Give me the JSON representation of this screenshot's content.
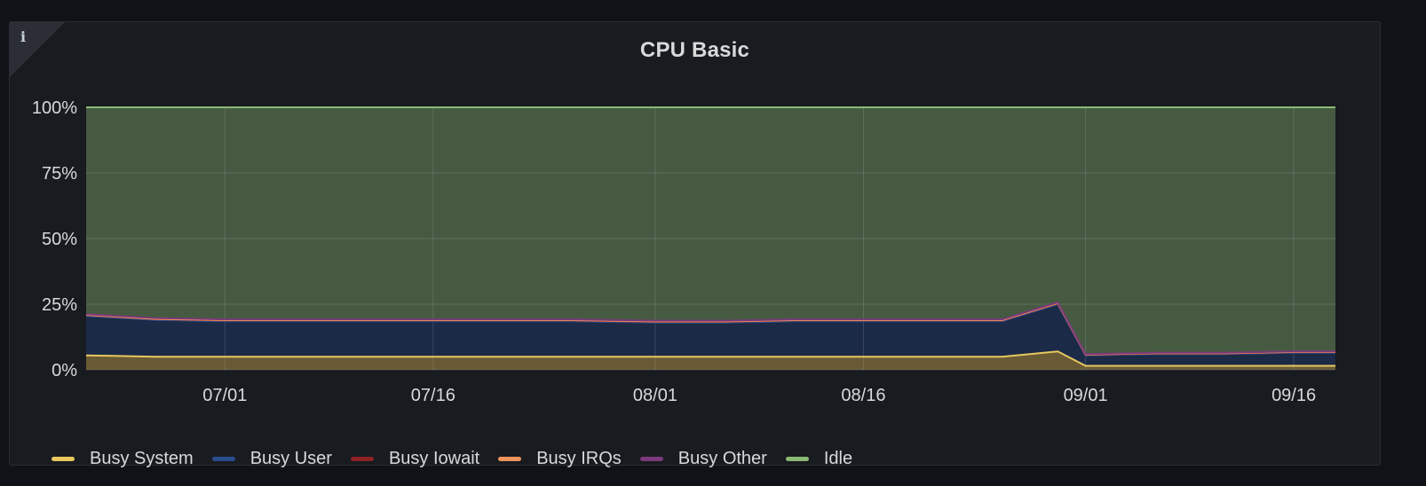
{
  "panel": {
    "title": "CPU Basic",
    "info_icon": "info-icon"
  },
  "colors": {
    "background": "#111217",
    "panel": "#181b1f",
    "grid": "#3b3f45",
    "idle_fill": "#465a42",
    "user_fill": "#1b2a46",
    "system_fill": "#685a34"
  },
  "chart_data": {
    "type": "area",
    "stacked": true,
    "title": "CPU Basic",
    "xlabel": "",
    "ylabel": "",
    "ylim": [
      0,
      100
    ],
    "y_ticks": [
      "0%",
      "25%",
      "50%",
      "75%",
      "100%"
    ],
    "x_ticks": [
      "07/01",
      "07/16",
      "08/01",
      "08/16",
      "09/01",
      "09/16"
    ],
    "grid": true,
    "legend_position": "bottom-left",
    "x": [
      "06/21",
      "06/26",
      "07/01",
      "07/06",
      "07/11",
      "07/16",
      "07/21",
      "07/26",
      "08/01",
      "08/06",
      "08/11",
      "08/16",
      "08/21",
      "08/26",
      "08/30",
      "09/01",
      "09/06",
      "09/11",
      "09/16",
      "09/19"
    ],
    "series": [
      {
        "name": "Busy System",
        "color": "#e9c85f",
        "values": [
          5.5,
          5.0,
          5.0,
          5.0,
          5.0,
          5.0,
          5.0,
          5.0,
          5.0,
          5.0,
          5.0,
          5.0,
          5.0,
          5.0,
          7.0,
          1.5,
          1.5,
          1.5,
          1.5,
          1.5
        ]
      },
      {
        "name": "Busy User",
        "color": "#2a4d8f",
        "values": [
          15.0,
          14.0,
          13.5,
          13.5,
          13.5,
          13.5,
          13.5,
          13.5,
          13.0,
          13.0,
          13.5,
          13.5,
          13.5,
          13.5,
          18.0,
          4.0,
          4.5,
          4.5,
          5.0,
          5.0
        ]
      },
      {
        "name": "Busy Iowait",
        "color": "#8e2224",
        "values": [
          0.3,
          0.3,
          0.3,
          0.3,
          0.3,
          0.3,
          0.3,
          0.3,
          0.3,
          0.3,
          0.3,
          0.3,
          0.3,
          0.3,
          0.3,
          0.2,
          0.2,
          0.2,
          0.2,
          0.2
        ]
      },
      {
        "name": "Busy IRQs",
        "color": "#f0935c",
        "values": [
          0.1,
          0.1,
          0.1,
          0.1,
          0.1,
          0.1,
          0.1,
          0.1,
          0.1,
          0.1,
          0.1,
          0.1,
          0.1,
          0.1,
          0.1,
          0.1,
          0.1,
          0.1,
          0.1,
          0.1
        ]
      },
      {
        "name": "Busy Other",
        "color": "#7b3a7c",
        "values": [
          0.3,
          0.3,
          0.3,
          0.3,
          0.3,
          0.3,
          0.3,
          0.3,
          0.3,
          0.3,
          0.3,
          0.3,
          0.3,
          0.3,
          0.3,
          0.2,
          0.2,
          0.2,
          0.2,
          0.2
        ]
      },
      {
        "name": "Idle",
        "color": "#8ab973",
        "values": [
          78.8,
          80.3,
          80.8,
          80.8,
          80.8,
          80.8,
          80.8,
          80.8,
          81.3,
          81.3,
          80.8,
          80.8,
          80.8,
          80.8,
          74.3,
          94.0,
          93.5,
          93.5,
          93.0,
          93.0
        ]
      }
    ]
  }
}
